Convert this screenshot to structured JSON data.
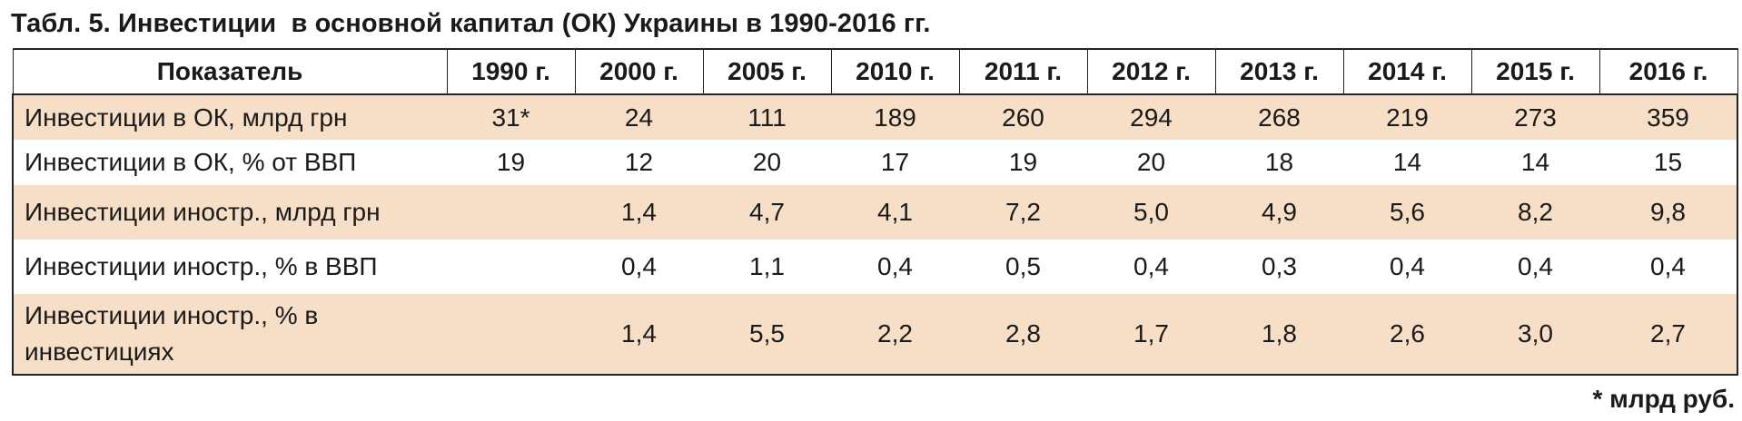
{
  "title": "Табл. 5. Инвестиции  в основной капитал (ОК) Украины в 1990-2016 гг.",
  "table": {
    "header_label": "Показатель",
    "years": [
      "1990 г.",
      "2000 г.",
      "2005 г.",
      "2010 г.",
      "2011 г.",
      "2012 г.",
      "2013 г.",
      "2014 г.",
      "2015 г.",
      "2016 г."
    ],
    "rows": [
      {
        "label": "Инвестиции в ОК, млрд грн",
        "values": [
          "31*",
          "24",
          "111",
          "189",
          "260",
          "294",
          "268",
          "219",
          "273",
          "359"
        ]
      },
      {
        "label": "Инвестиции в ОК, % от ВВП",
        "values": [
          "19",
          "12",
          "20",
          "17",
          "19",
          "20",
          "18",
          "14",
          "14",
          "15"
        ]
      },
      {
        "label": "Инвестиции иностр., млрд грн",
        "values": [
          "",
          "1,4",
          "4,7",
          "4,1",
          "7,2",
          "5,0",
          "4,9",
          "5,6",
          "8,2",
          "9,8"
        ]
      },
      {
        "label": "Инвестиции иностр., % в ВВП",
        "values": [
          "",
          "0,4",
          "1,1",
          "0,4",
          "0,5",
          "0,4",
          "0,3",
          "0,4",
          "0,4",
          "0,4"
        ]
      },
      {
        "label": "Инвестиции иностр., % в инвестициях",
        "values": [
          "",
          "1,4",
          "5,5",
          "2,2",
          "2,8",
          "1,7",
          "1,8",
          "2,6",
          "3,0",
          "2,7"
        ]
      }
    ]
  },
  "footnote": "* млрд руб.",
  "colors": {
    "row_shade": "#f6dfc6",
    "border": "#222222",
    "text": "#1a1a1a"
  }
}
